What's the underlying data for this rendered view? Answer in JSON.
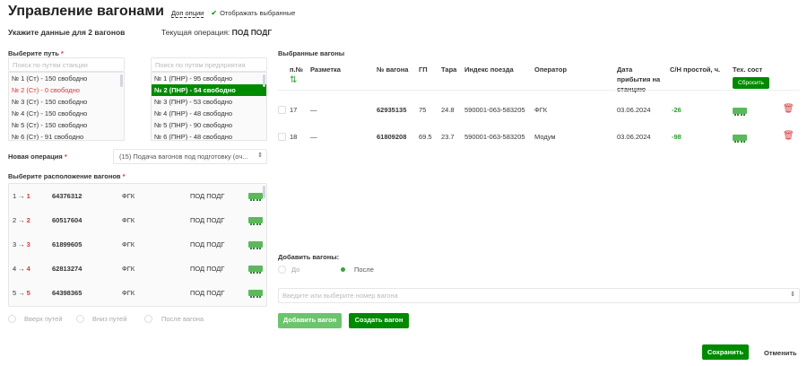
{
  "header": {
    "title": "Управление вагонами",
    "extra_options": "Доп опции",
    "show_selected": "Отображать выбранные",
    "show_selected_checked": true
  },
  "subheader": {
    "instruction": "Укажите данные для 2 вагонов",
    "current_op_label": "Текущая операция:",
    "current_op_value": "ПОД ПОДГ"
  },
  "track": {
    "label": "Выберите путь",
    "required": "*",
    "station_placeholder": "Поиск по путям станции",
    "enterprise_placeholder": "Поиск по путям предприятия",
    "station_tracks": [
      "№ 1 (Ст) - 150 свободно",
      "№ 2 (Ст) - 0 свободно",
      "№ 3 (Ст) - 150 свободно",
      "№ 4 (Ст) - 150 свободно",
      "№ 5 (Ст) - 150 свободно",
      "№ 6 (Ст) - 91 свободно"
    ],
    "enterprise_tracks": [
      "№ 1 (ПНР) - 95 свободно",
      "№ 2 (ПНР) - 54 свободно",
      "№ 3 (ПНР) - 53 свободно",
      "№ 4 (ПНР) - 48 свободно",
      "№ 5 (ПНР) - 90 свободно",
      "№ 6 (ПНР) - 48 свободно"
    ]
  },
  "operation": {
    "label": "Новая операция",
    "required": "*",
    "value": "(15) Подача вагонов под подготовку (оч..."
  },
  "placement": {
    "label": "Выберите расположение вагонов",
    "required": "*",
    "arrow": "→",
    "rows": [
      {
        "from": "1",
        "to": "1",
        "number": "64376312",
        "operator": "ФГК",
        "op": "ПОД ПОДГ"
      },
      {
        "from": "2",
        "to": "2",
        "number": "60517604",
        "operator": "ФГК",
        "op": "ПОД ПОДГ"
      },
      {
        "from": "3",
        "to": "3",
        "number": "61899605",
        "operator": "ФГК",
        "op": "ПОД ПОДГ"
      },
      {
        "from": "4",
        "to": "4",
        "number": "62813274",
        "operator": "ФГК",
        "op": "ПОД ПОДГ"
      },
      {
        "from": "5",
        "to": "5",
        "number": "64398365",
        "operator": "ФГК",
        "op": "ПОД ПОДГ"
      }
    ],
    "options": [
      "Вверх путей",
      "Вниз путей",
      "После вагона"
    ]
  },
  "selected": {
    "title": "Выбранные вагоны",
    "columns": [
      "п.№",
      "Разметка",
      "№ вагона",
      "ГП",
      "Тара",
      "Индекс поезда",
      "Оператор",
      "Дата прибытия на станцию",
      "С/Н простой, ч.",
      "Тех. сост"
    ],
    "reset": "Сбросить",
    "rows": [
      {
        "n": "17",
        "mark": "—",
        "number": "62935135",
        "gp": "75",
        "tara": "24.8",
        "index": "590001-063-583205",
        "operator": "ФГК",
        "date": "03.06.2024",
        "idle": "-26"
      },
      {
        "n": "18",
        "mark": "—",
        "number": "61809208",
        "gp": "69.5",
        "tara": "23.7",
        "index": "590001-063-583205",
        "operator": "Модум",
        "date": "03.06.2024",
        "idle": "-98"
      }
    ]
  },
  "add": {
    "label": "Добавить вагоны:",
    "before": "До",
    "after": "После",
    "selected": "После",
    "placeholder": "Введите или выберите номер вагона",
    "add_btn": "Добавить вагон",
    "create_btn": "Создать вагон"
  },
  "footer": {
    "save": "Сохранить",
    "cancel": "Отменить"
  },
  "colors": {
    "accent": "#008a00",
    "danger": "#d9383a",
    "wagon": "#5cb85c"
  }
}
